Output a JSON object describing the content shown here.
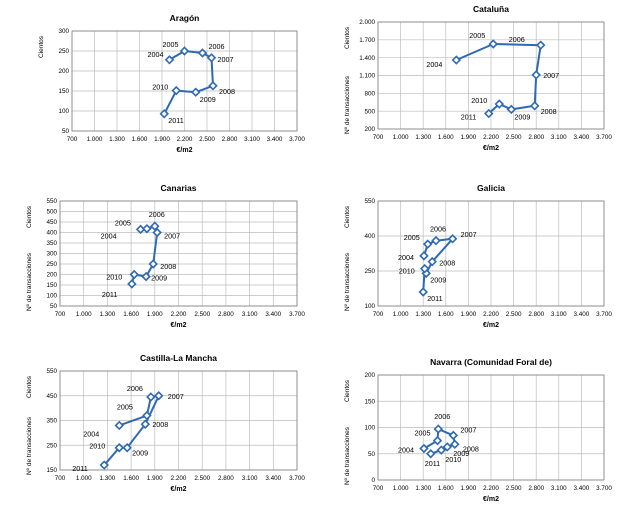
{
  "style": {
    "line_color": "#2e69b3",
    "grid_color": "#bdbdbd",
    "axis_color": "#7f7f7f",
    "text_color": "#000000"
  },
  "chart_data": [
    {
      "type": "line",
      "title": "Aragón",
      "ylabel_top": "Cientos",
      "ylabel": "",
      "xlabel": "€/m2",
      "x_ticks": [
        "700",
        "1.000",
        "1.300",
        "1.600",
        "1.900",
        "2.200",
        "2.500",
        "2.800",
        "3.100",
        "3.400",
        "3.700"
      ],
      "xlim": [
        700,
        3700
      ],
      "y_ticks": [
        "50",
        "100",
        "150",
        "200",
        "250",
        "300"
      ],
      "ylim": [
        50,
        300
      ],
      "series": [
        {
          "name": "Aragón",
          "points": [
            {
              "year": "2004",
              "x": 2000,
              "y": 228
            },
            {
              "year": "2005",
              "x": 2200,
              "y": 250
            },
            {
              "year": "2006",
              "x": 2440,
              "y": 245
            },
            {
              "year": "2007",
              "x": 2560,
              "y": 233
            },
            {
              "year": "2008",
              "x": 2580,
              "y": 163
            },
            {
              "year": "2009",
              "x": 2350,
              "y": 147
            },
            {
              "year": "2010",
              "x": 2090,
              "y": 151
            },
            {
              "year": "2011",
              "x": 1930,
              "y": 93
            }
          ]
        }
      ]
    },
    {
      "type": "line",
      "title": "Cataluña",
      "ylabel_top": "Cientos",
      "ylabel": "Nº de transacciones",
      "xlabel": "€/m2",
      "x_ticks": [
        "700",
        "1.000",
        "1.300",
        "1.600",
        "1.900",
        "2.200",
        "2.500",
        "2.800",
        "3.100",
        "3.400",
        "3.700"
      ],
      "xlim": [
        700,
        3700
      ],
      "y_ticks": [
        "200",
        "500",
        "800",
        "1.100",
        "1.400",
        "1.700",
        "2.000"
      ],
      "ylim": [
        200,
        2000
      ],
      "series": [
        {
          "name": "Cataluña",
          "points": [
            {
              "year": "2004",
              "x": 1740,
              "y": 1360
            },
            {
              "year": "2005",
              "x": 2230,
              "y": 1630
            },
            {
              "year": "2006",
              "x": 2860,
              "y": 1610
            },
            {
              "year": "2007",
              "x": 2800,
              "y": 1110
            },
            {
              "year": "2008",
              "x": 2780,
              "y": 590
            },
            {
              "year": "2009",
              "x": 2470,
              "y": 530
            },
            {
              "year": "2010",
              "x": 2310,
              "y": 620
            },
            {
              "year": "2011",
              "x": 2170,
              "y": 460
            }
          ]
        }
      ]
    },
    {
      "type": "line",
      "title": "Canarias",
      "ylabel_top": "Cientos",
      "ylabel": "Nº de transacciones",
      "xlabel": "€/m2",
      "x_ticks": [
        "700",
        "1.000",
        "1.300",
        "1.600",
        "1.900",
        "2.200",
        "2.500",
        "2.800",
        "3.100",
        "3.400",
        "3.700"
      ],
      "xlim": [
        700,
        3700
      ],
      "y_ticks": [
        "50",
        "100",
        "150",
        "200",
        "250",
        "300",
        "350",
        "400",
        "450",
        "500",
        "550"
      ],
      "ylim": [
        50,
        550
      ],
      "series": [
        {
          "name": "Canarias",
          "points": [
            {
              "year": "2004",
              "x": 1720,
              "y": 415
            },
            {
              "year": "2005",
              "x": 1800,
              "y": 418
            },
            {
              "year": "2006",
              "x": 1900,
              "y": 430
            },
            {
              "year": "2007",
              "x": 1930,
              "y": 400
            },
            {
              "year": "2008",
              "x": 1880,
              "y": 250
            },
            {
              "year": "2009",
              "x": 1790,
              "y": 190
            },
            {
              "year": "2010",
              "x": 1640,
              "y": 200
            },
            {
              "year": "2011",
              "x": 1610,
              "y": 155
            }
          ]
        }
      ]
    },
    {
      "type": "line",
      "title": "Galicia",
      "ylabel_top": "Cientos",
      "ylabel": "Nº de transacciones",
      "xlabel": "€/m2",
      "x_ticks": [
        "700",
        "1.000",
        "1.300",
        "1.600",
        "1.900",
        "2.200",
        "2.500",
        "2.800",
        "3.100",
        "3.400",
        "3.700"
      ],
      "xlim": [
        700,
        3700
      ],
      "y_ticks": [
        "100",
        "250",
        "400",
        "550"
      ],
      "ylim": [
        100,
        550
      ],
      "series": [
        {
          "name": "Galicia",
          "points": [
            {
              "year": "2004",
              "x": 1310,
              "y": 315
            },
            {
              "year": "2005",
              "x": 1360,
              "y": 365
            },
            {
              "year": "2006",
              "x": 1470,
              "y": 380
            },
            {
              "year": "2007",
              "x": 1690,
              "y": 388
            },
            {
              "year": "2008",
              "x": 1420,
              "y": 290
            },
            {
              "year": "2009",
              "x": 1340,
              "y": 240
            },
            {
              "year": "2010",
              "x": 1320,
              "y": 260
            },
            {
              "year": "2011",
              "x": 1300,
              "y": 160
            }
          ]
        }
      ]
    },
    {
      "type": "line",
      "title": "Castilla-La Mancha",
      "ylabel_top": "Cientos",
      "ylabel": "Nº de transacciones",
      "xlabel": "€/m2",
      "x_ticks": [
        "700",
        "1.000",
        "1.300",
        "1.600",
        "1.900",
        "2.200",
        "2.500",
        "2.800",
        "3.100",
        "3.400",
        "3.700"
      ],
      "xlim": [
        700,
        3700
      ],
      "y_ticks": [
        "150",
        "250",
        "350",
        "450",
        "550"
      ],
      "ylim": [
        150,
        550
      ],
      "series": [
        {
          "name": "Castilla-La Mancha",
          "points": [
            {
              "year": "2004",
              "x": 1450,
              "y": 330
            },
            {
              "year": "2005",
              "x": 1800,
              "y": 370
            },
            {
              "year": "2006",
              "x": 1850,
              "y": 445
            },
            {
              "year": "2007",
              "x": 1950,
              "y": 450
            },
            {
              "year": "2008",
              "x": 1780,
              "y": 335
            },
            {
              "year": "2009",
              "x": 1550,
              "y": 240
            },
            {
              "year": "2010",
              "x": 1450,
              "y": 240
            },
            {
              "year": "2011",
              "x": 1260,
              "y": 170
            }
          ]
        }
      ]
    },
    {
      "type": "line",
      "title": "Navarra (Comunidad Foral de)",
      "ylabel_top": "Cientos",
      "ylabel": "Nº de transacciones",
      "xlabel": "€/m2",
      "x_ticks": [
        "700",
        "1.000",
        "1.300",
        "1.600",
        "1.900",
        "2.200",
        "2.500",
        "2.800",
        "3.100",
        "3.400",
        "3.700"
      ],
      "xlim": [
        700,
        3700
      ],
      "y_ticks": [
        "0",
        "50",
        "100",
        "150",
        "200"
      ],
      "ylim": [
        0,
        200
      ],
      "series": [
        {
          "name": "Navarra",
          "points": [
            {
              "year": "2004",
              "x": 1310,
              "y": 60
            },
            {
              "year": "2005",
              "x": 1490,
              "y": 75
            },
            {
              "year": "2006",
              "x": 1500,
              "y": 97
            },
            {
              "year": "2007",
              "x": 1700,
              "y": 85
            },
            {
              "year": "2008",
              "x": 1720,
              "y": 68
            },
            {
              "year": "2009",
              "x": 1620,
              "y": 63
            },
            {
              "year": "2010",
              "x": 1540,
              "y": 57
            },
            {
              "year": "2011",
              "x": 1400,
              "y": 50
            }
          ]
        }
      ]
    }
  ]
}
